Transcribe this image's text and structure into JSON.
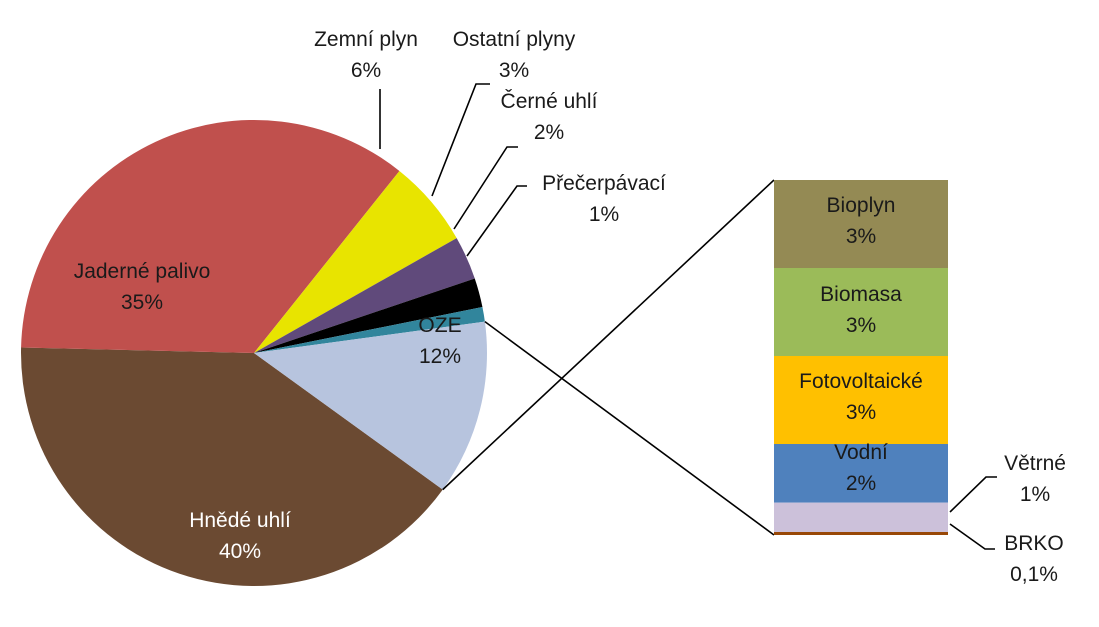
{
  "chart_data": {
    "type": "pie",
    "title": "",
    "pie": {
      "slices": [
        {
          "label": "Hnědé uhlí",
          "value_text": "40%",
          "value": 40,
          "color": "#6b4a32"
        },
        {
          "label": "Jaderné palivo",
          "value_text": "35%",
          "value": 35,
          "color": "#c0504d"
        },
        {
          "label": "Zemní plyn",
          "value_text": "6%",
          "value": 6,
          "color": "#e8e400"
        },
        {
          "label": "Ostatní plyny",
          "value_text": "3%",
          "value": 3,
          "color": "#604a7b"
        },
        {
          "label": "Černé uhlí",
          "value_text": "2%",
          "value": 2,
          "color": "#000000"
        },
        {
          "label": "Přečerpávací",
          "value_text": "1%",
          "value": 1,
          "color": "#31859c"
        },
        {
          "label": "OZE",
          "value_text": "12%",
          "value": 12,
          "color": "#b7c4de"
        }
      ]
    },
    "breakdown_of": "OZE",
    "bar": {
      "segments": [
        {
          "label": "Bioplyn",
          "value_text": "3%",
          "value": 3,
          "color": "#948a54"
        },
        {
          "label": "Biomasa",
          "value_text": "3%",
          "value": 3,
          "color": "#9bbb59"
        },
        {
          "label": "Fotovoltaické",
          "value_text": "3%",
          "value": 3,
          "color": "#ffc000"
        },
        {
          "label": "Vodní",
          "value_text": "2%",
          "value": 2,
          "color": "#4f81bd"
        },
        {
          "label": "Větrné",
          "value_text": "1%",
          "value": 1,
          "color": "#ccc1da"
        },
        {
          "label": "BRKO",
          "value_text": "0,1%",
          "value": 0.1,
          "color": "#984807"
        }
      ]
    }
  }
}
